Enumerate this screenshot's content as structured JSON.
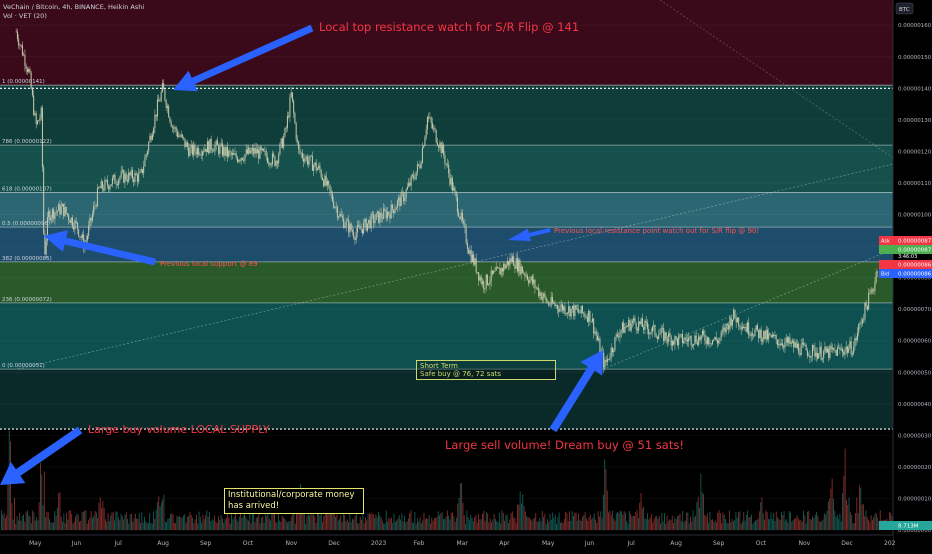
{
  "header": {
    "title": "VeChain / Bitcoin, 4h, BINANCE, Heikin Ashi",
    "indicator": "Vol · VET (20)",
    "currency_badge": "BTC"
  },
  "colors": {
    "background": "#000000",
    "zone_top": "#3a0a1a",
    "zone_dark_teal": "#0f3d3a",
    "zone_teal": "#15504c",
    "zone_steel": "#2c6673",
    "zone_blue": "#1d4d6b",
    "zone_green": "#2a5a2a",
    "zone_teal2": "#0e5050",
    "zone_bottom": "#0a2a2a",
    "candle": "#c9ccae",
    "arrow": "#2962ff",
    "annotation_big": "#f23645",
    "annotation_small": "#ff5252",
    "ask_badge": "#f23645",
    "bid_badge": "#2962ff",
    "mid_badge": "#4caf50",
    "volume_badge": "#26a69a"
  },
  "fib_levels": [
    {
      "label": "1 (0.00000141)",
      "value": 1.41e-06
    },
    {
      "label": "786 (0.00000122)",
      "value": 1.22e-06
    },
    {
      "label": "618 (0.00000107)",
      "value": 1.07e-06
    },
    {
      "label": "0.5 (0.00000096)",
      "value": 9.6e-07
    },
    {
      "label": "382 (0.00000085)",
      "value": 8.5e-07
    },
    {
      "label": "236 (0.00000072)",
      "value": 7.2e-07
    },
    {
      "label": "0 (0.00000051)",
      "value": 5.1e-07
    }
  ],
  "annotations": {
    "top_resistance": "Local top resistance watch for S/R Flip @ 141",
    "previous_support": "Previous local support @ 89",
    "previous_resistance": "Previous local resistance point watch out for S/R flip @ 90!",
    "large_buy": "Large buy volume LOCAL SUPPLY",
    "large_sell": "Large sell volume! Dream buy @ 51 sats!",
    "short_term_title": "Short Term",
    "short_term_body": "Safe buy @ 76, 72 sats",
    "institutional_line1": "Institutional/corporate money",
    "institutional_line2": "has arrived!"
  },
  "price_badges": {
    "ask_label": "Ask",
    "ask_value": "0.00000087",
    "mid_value": "0.00000087",
    "mid_time": "3:46:03",
    "last_value": "0.00000086",
    "bid_label": "Bid",
    "bid_value": "0.00000086",
    "volume_value": "8.713M"
  },
  "chart_data": {
    "type": "candlestick",
    "title": "VeChain / Bitcoin, 4h, BINANCE, Heikin Ashi",
    "y_axis": {
      "ticks": [
        "0.00000160",
        "0.00000150",
        "0.00000140",
        "0.00000130",
        "0.00000120",
        "0.00000110",
        "0.00000100",
        "0.00000090",
        "0.00000080",
        "0.00000070",
        "0.00000060",
        "0.00000050",
        "0.00000040",
        "0.00000030",
        "0.00000020",
        "0.00000010",
        "0.00000000"
      ],
      "range": [
        0.0,
        1.68e-06
      ],
      "side": "right"
    },
    "x_axis": {
      "ticks": [
        "May",
        "Jun",
        "Jul",
        "Aug",
        "Sep",
        "Oct",
        "Nov",
        "Dec",
        "2023",
        "Feb",
        "Mar",
        "Apr",
        "May",
        "Jun",
        "Jul",
        "Aug",
        "Sep",
        "Oct",
        "Nov",
        "Dec",
        "202"
      ]
    },
    "series": [
      {
        "points": [
          [
            "Apr 22",
            1.58e-06
          ],
          [
            "May 1",
            1.45e-06
          ],
          [
            "May 6",
            1.28e-06
          ],
          [
            "May 10",
            1.32e-06
          ],
          [
            "May 12",
            8.6e-07
          ],
          [
            "May 15",
            1e-06
          ],
          [
            "May 25",
            1.02e-06
          ],
          [
            "Jun 5",
            9.6e-07
          ],
          [
            "Jun 10",
            9e-07
          ],
          [
            "Jun 20",
            1.08e-06
          ],
          [
            "Jul 5",
            1.12e-06
          ],
          [
            "Jul 20",
            1.12e-06
          ],
          [
            "Aug 1",
            1.34e-06
          ],
          [
            "Aug 5",
            1.4e-06
          ],
          [
            "Aug 12",
            1.28e-06
          ],
          [
            "Aug 25",
            1.2e-06
          ],
          [
            "Sep 10",
            1.22e-06
          ],
          [
            "Sep 25",
            1.18e-06
          ],
          [
            "Oct 10",
            1.2e-06
          ],
          [
            "Oct 25",
            1.17e-06
          ],
          [
            "Nov 1",
            1.26e-06
          ],
          [
            "Nov 5",
            1.38e-06
          ],
          [
            "Nov 10",
            1.2e-06
          ],
          [
            "Nov 25",
            1.14e-06
          ],
          [
            "Dec 10",
            9.9e-07
          ],
          [
            "Dec 20",
            9.4e-07
          ],
          [
            "Jan 1",
            9.8e-07
          ],
          [
            "Jan 15",
            1.01e-06
          ],
          [
            "Jan 25",
            1.06e-06
          ],
          [
            "Feb 5",
            1.16e-06
          ],
          [
            "Feb 10",
            1.31e-06
          ],
          [
            "Feb 20",
            1.2e-06
          ],
          [
            "Mar 1",
            1.04e-06
          ],
          [
            "Mar 10",
            8.9e-07
          ],
          [
            "Mar 20",
            7.8e-07
          ],
          [
            "Apr 1",
            8.2e-07
          ],
          [
            "Apr 10",
            8.6e-07
          ],
          [
            "Apr 20",
            8.1e-07
          ],
          [
            "May 5",
            7.2e-07
          ],
          [
            "May 20",
            7e-07
          ],
          [
            "Jun 5",
            6.8e-07
          ],
          [
            "Jun 10",
            6e-07
          ],
          [
            "Jun 15",
            5.2e-07
          ],
          [
            "Jun 25",
            6.3e-07
          ],
          [
            "Jul 5",
            6.6e-07
          ],
          [
            "Jul 20",
            6.3e-07
          ],
          [
            "Aug 5",
            6e-07
          ],
          [
            "Aug 25",
            6.1e-07
          ],
          [
            "Sep 5",
            6e-07
          ],
          [
            "Sep 15",
            6.8e-07
          ],
          [
            "Sep 25",
            6.4e-07
          ],
          [
            "Oct 10",
            6.1e-07
          ],
          [
            "Oct 25",
            5.9e-07
          ],
          [
            "Nov 5",
            5.7e-07
          ],
          [
            "Nov 20",
            5.6e-07
          ],
          [
            "Dec 1",
            5.7e-07
          ],
          [
            "Dec 10",
            5.8e-07
          ],
          [
            "Dec 15",
            6.6e-07
          ],
          [
            "Dec 20",
            7.2e-07
          ],
          [
            "Dec 25",
            7.8e-07
          ],
          [
            "Dec 28",
            8.6e-07
          ]
        ]
      }
    ],
    "volume_spikes": [
      "May",
      "Aug",
      "Nov",
      "Feb",
      "Jun",
      "Dec"
    ],
    "legend": "none"
  }
}
